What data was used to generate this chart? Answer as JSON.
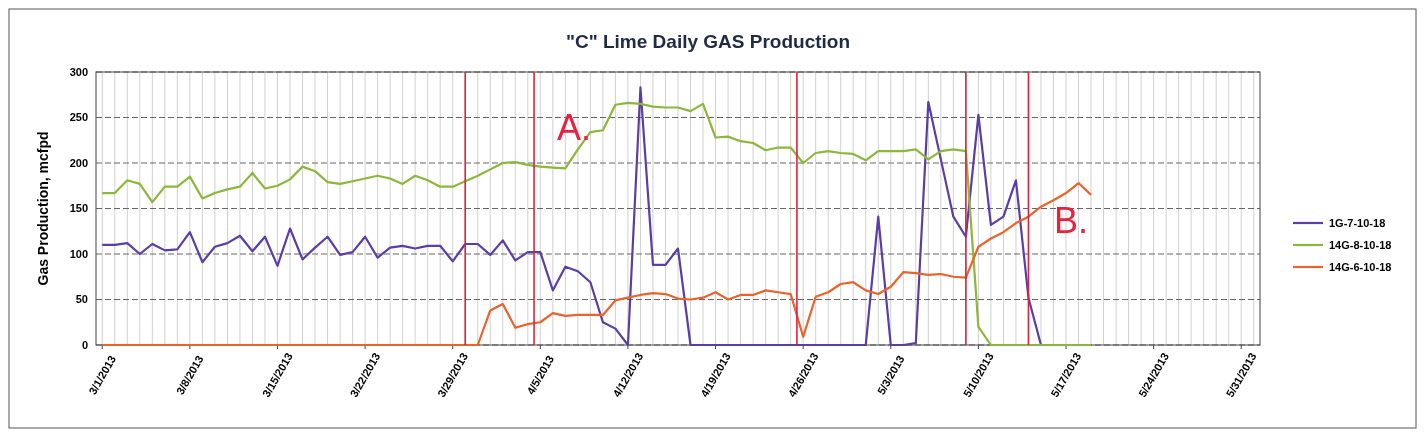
{
  "chart_data": {
    "type": "line",
    "title": "\"C\" Lime Daily GAS Production",
    "ylabel": "Gas Production, mcfpd",
    "x": [
      "2013-03-01",
      "2013-03-02",
      "2013-03-03",
      "2013-03-04",
      "2013-03-05",
      "2013-03-06",
      "2013-03-07",
      "2013-03-08",
      "2013-03-09",
      "2013-03-10",
      "2013-03-11",
      "2013-03-12",
      "2013-03-13",
      "2013-03-14",
      "2013-03-15",
      "2013-03-16",
      "2013-03-17",
      "2013-03-18",
      "2013-03-19",
      "2013-03-20",
      "2013-03-21",
      "2013-03-22",
      "2013-03-23",
      "2013-03-24",
      "2013-03-25",
      "2013-03-26",
      "2013-03-27",
      "2013-03-28",
      "2013-03-29",
      "2013-03-30",
      "2013-03-31",
      "2013-04-01",
      "2013-04-02",
      "2013-04-03",
      "2013-04-04",
      "2013-04-05",
      "2013-04-06",
      "2013-04-07",
      "2013-04-08",
      "2013-04-09",
      "2013-04-10",
      "2013-04-11",
      "2013-04-12",
      "2013-04-13",
      "2013-04-14",
      "2013-04-15",
      "2013-04-16",
      "2013-04-17",
      "2013-04-18",
      "2013-04-19",
      "2013-04-20",
      "2013-04-21",
      "2013-04-22",
      "2013-04-23",
      "2013-04-24",
      "2013-04-25",
      "2013-04-26",
      "2013-04-27",
      "2013-04-28",
      "2013-04-29",
      "2013-04-30",
      "2013-05-01",
      "2013-05-02",
      "2013-05-03",
      "2013-05-04",
      "2013-05-05",
      "2013-05-06",
      "2013-05-07",
      "2013-05-08",
      "2013-05-09",
      "2013-05-10",
      "2013-05-11",
      "2013-05-12",
      "2013-05-13",
      "2013-05-14",
      "2013-05-15",
      "2013-05-16",
      "2013-05-17",
      "2013-05-18",
      "2013-05-19"
    ],
    "series": [
      {
        "name": "1G-7-10-18",
        "color": "#5a3ea6",
        "values": [
          110,
          110,
          112,
          100,
          111,
          104,
          105,
          124,
          91,
          108,
          112,
          120,
          103,
          119,
          87,
          128,
          94,
          107,
          119,
          99,
          102,
          119,
          96,
          107,
          109,
          106,
          109,
          109,
          92,
          111,
          111,
          99,
          115,
          93,
          102,
          102,
          60,
          86,
          81,
          69,
          25,
          18,
          0,
          283,
          88,
          88,
          106,
          0,
          0,
          0,
          0,
          0,
          0,
          0,
          0,
          0,
          0,
          0,
          0,
          0,
          0,
          0,
          141,
          0,
          0,
          2,
          267,
          204,
          141,
          119,
          253,
          132,
          141,
          181,
          52,
          0,
          null,
          null,
          null,
          null
        ]
      },
      {
        "name": "14G-8-10-18",
        "color": "#8db63c",
        "values": [
          167,
          167,
          181,
          177,
          157,
          174,
          174,
          185,
          161,
          167,
          171,
          174,
          189,
          172,
          175,
          182,
          196,
          191,
          179,
          177,
          180,
          183,
          186,
          183,
          177,
          186,
          181,
          174,
          174,
          180,
          186,
          193,
          200,
          201,
          198,
          196,
          195,
          194,
          215,
          234,
          236,
          264,
          266,
          265,
          262,
          261,
          261,
          257,
          265,
          228,
          229,
          224,
          222,
          214,
          217,
          217,
          200,
          211,
          213,
          211,
          210,
          203,
          213,
          213,
          213,
          215,
          204,
          213,
          215,
          213,
          20,
          0,
          0,
          0,
          0,
          0,
          0,
          0,
          0,
          0
        ]
      },
      {
        "name": "14G-6-10-18",
        "color": "#e8642c",
        "values": [
          0,
          0,
          0,
          0,
          0,
          0,
          0,
          0,
          0,
          0,
          0,
          0,
          0,
          0,
          0,
          0,
          0,
          0,
          0,
          0,
          0,
          0,
          0,
          0,
          0,
          0,
          0,
          0,
          0,
          0,
          0,
          38,
          45,
          19,
          23,
          25,
          35,
          32,
          33,
          33,
          33,
          49,
          52,
          55,
          57,
          56,
          51,
          50,
          52,
          58,
          50,
          55,
          55,
          60,
          58,
          56,
          9,
          53,
          58,
          67,
          69,
          60,
          56,
          64,
          80,
          79,
          77,
          78,
          75,
          74,
          108,
          117,
          124,
          134,
          141,
          152,
          159,
          167,
          178,
          165
        ]
      }
    ],
    "xlim": [
      "2013-02-28T12:00",
      "2013-06-01T12:00"
    ],
    "xticks": [
      {
        "value": "2013-03-01",
        "label": "3/1/2013"
      },
      {
        "value": "2013-03-08",
        "label": "3/8/2013"
      },
      {
        "value": "2013-03-15",
        "label": "3/15/2013"
      },
      {
        "value": "2013-03-22",
        "label": "3/22/2013"
      },
      {
        "value": "2013-03-29",
        "label": "3/29/2013"
      },
      {
        "value": "2013-04-05",
        "label": "4/5/2013"
      },
      {
        "value": "2013-04-12",
        "label": "4/12/2013"
      },
      {
        "value": "2013-04-19",
        "label": "4/19/2013"
      },
      {
        "value": "2013-04-26",
        "label": "4/26/2013"
      },
      {
        "value": "2013-05-03",
        "label": "5/3/2013"
      },
      {
        "value": "2013-05-10",
        "label": "5/10/2013"
      },
      {
        "value": "2013-05-17",
        "label": "5/17/2013"
      },
      {
        "value": "2013-05-24",
        "label": "5/24/2013"
      },
      {
        "value": "2013-05-31",
        "label": "5/31/2013"
      }
    ],
    "ylim": [
      0,
      300
    ],
    "yticks": [
      0,
      50,
      100,
      150,
      200,
      250,
      300
    ],
    "grid": true,
    "legend": "right",
    "ref_lines": [
      {
        "axis": "x",
        "value": "2013-03-30",
        "color": "#e0203c"
      },
      {
        "axis": "x",
        "value": "2013-04-04T12:00",
        "color": "#e0203c"
      },
      {
        "axis": "x",
        "value": "2013-04-25T12:00",
        "color": "#e0203c"
      },
      {
        "axis": "x",
        "value": "2013-05-09",
        "color": "#e0203c"
      },
      {
        "axis": "x",
        "value": "2013-05-14",
        "color": "#e0203c"
      }
    ],
    "annotations": [
      "A.",
      "B."
    ]
  }
}
